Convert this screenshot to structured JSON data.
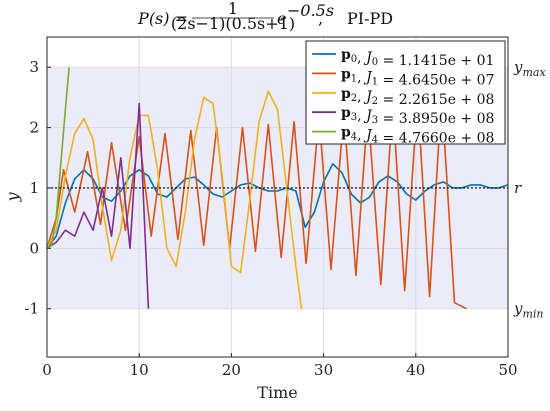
{
  "chart_data": {
    "type": "line",
    "title": "P(s) = 1/((2s-1)(0.5s+1)) e^{-0.5s},     PI-PD",
    "title_parts": {
      "lhs": "P(s) =",
      "frac_num": "1",
      "frac_den": "(2s−1)(0.5s+1)",
      "exp_base": "e",
      "exp_power": "−0.5s",
      "suffix": ",",
      "method": "PI-PD"
    },
    "xlabel": "Time",
    "ylabel": "y",
    "xlim": [
      0,
      50
    ],
    "ylim": [
      -1.8,
      3.5
    ],
    "xticks": [
      0,
      10,
      20,
      30,
      40,
      50
    ],
    "yticks": [
      -1,
      0,
      1,
      2,
      3
    ],
    "grid": true,
    "legend_position": "top-right",
    "reference": {
      "label": "r",
      "value": 1
    },
    "band": {
      "upper_label": "ymax",
      "upper": 3,
      "lower_label": "ymin",
      "lower": -1,
      "color": "#ebebfa"
    },
    "series": [
      {
        "name": "p0, J0 = 1.1415e+01",
        "legend": {
          "p": "p",
          "sub": "0",
          "j": "J",
          "jsub": "0",
          "value": "= 1.1415e + 01"
        },
        "color": "#0072bd",
        "x": [
          0,
          1,
          2,
          3,
          4,
          5,
          6,
          7,
          8,
          9,
          10,
          11,
          12,
          13,
          14,
          15,
          16,
          17,
          18,
          19,
          20,
          21,
          22,
          23,
          24,
          25,
          26,
          27,
          28,
          29,
          30,
          31,
          32,
          33,
          34,
          35,
          36,
          37,
          38,
          39,
          40,
          41,
          42,
          43,
          44,
          45,
          46,
          47,
          48,
          49,
          50
        ],
        "y": [
          0,
          0.2,
          0.75,
          1.15,
          1.3,
          1.15,
          0.85,
          0.78,
          0.95,
          1.2,
          1.3,
          1.2,
          0.9,
          0.85,
          1.0,
          1.15,
          1.18,
          1.05,
          0.9,
          0.85,
          0.95,
          1.05,
          1.08,
          1.0,
          0.95,
          0.95,
          1.0,
          0.95,
          0.35,
          0.6,
          1.1,
          1.4,
          1.25,
          0.9,
          0.75,
          0.85,
          1.1,
          1.2,
          1.1,
          0.9,
          0.8,
          0.95,
          1.05,
          1.1,
          1.0,
          1.0,
          1.05,
          1.05,
          1.0,
          1.0,
          1.05
        ]
      },
      {
        "name": "p1, J1 = 4.6450e+07",
        "legend": {
          "p": "p",
          "sub": "1",
          "j": "J",
          "jsub": "1",
          "value": "= 4.6450e + 07"
        },
        "color": "#d95319",
        "x": [
          0,
          1,
          1.8,
          3,
          4.4,
          5.8,
          7,
          8.5,
          10,
          11.3,
          12.8,
          14.2,
          15.6,
          17,
          18.4,
          19.8,
          21.2,
          22.6,
          24,
          25.4,
          26.8,
          28.1,
          29.5,
          30.8,
          32.2,
          33.5,
          34.8,
          36.2,
          37.5,
          38.8,
          40.2,
          41.5,
          42.8,
          44.2,
          45.5
        ],
        "y": [
          0,
          0.5,
          1.3,
          0.6,
          1.6,
          0.4,
          1.75,
          0.3,
          1.85,
          0.2,
          1.9,
          0.15,
          1.95,
          0.05,
          2.0,
          0.0,
          2.0,
          -0.05,
          2.05,
          -0.15,
          2.1,
          -0.25,
          2.2,
          -0.35,
          2.25,
          -0.45,
          2.3,
          -0.6,
          2.4,
          -0.7,
          2.5,
          -0.8,
          2.55,
          -0.9,
          -1.0
        ]
      },
      {
        "name": "p2, J2 = 2.2615e+08",
        "legend": {
          "p": "p",
          "sub": "2",
          "j": "J",
          "jsub": "2",
          "value": "= 2.2615e + 08"
        },
        "color": "#edb120",
        "x": [
          0,
          1,
          2,
          3,
          4,
          5,
          6,
          7,
          8,
          9,
          10,
          11,
          12,
          13,
          14,
          15,
          16,
          17,
          18,
          19,
          20,
          21,
          22,
          23,
          24,
          25,
          26,
          27,
          27.6
        ],
        "y": [
          0,
          0.3,
          1.2,
          1.9,
          2.15,
          1.8,
          0.7,
          -0.2,
          0.3,
          1.5,
          2.2,
          2.2,
          1.3,
          0.0,
          -0.3,
          0.6,
          1.8,
          2.5,
          2.4,
          1.2,
          -0.3,
          -0.4,
          0.8,
          2.1,
          2.6,
          2.3,
          1.0,
          -0.3,
          -1.0
        ]
      },
      {
        "name": "p3, J3 = 3.8950e+08",
        "legend": {
          "p": "p",
          "sub": "3",
          "j": "J",
          "jsub": "3",
          "value": "= 3.8950e + 08"
        },
        "color": "#7e2f8e",
        "x": [
          0,
          1,
          2,
          3,
          4,
          5,
          6,
          7,
          8,
          9,
          10,
          11
        ],
        "y": [
          0,
          0.1,
          0.3,
          0.2,
          0.6,
          0.3,
          1.0,
          0.2,
          1.5,
          0.0,
          2.4,
          -1.0
        ]
      },
      {
        "name": "p4, J4 = 4.7660e+08",
        "legend": {
          "p": "p",
          "sub": "4",
          "j": "J",
          "jsub": "4",
          "value": "= 4.7660e + 08"
        },
        "color": "#77ac30",
        "x": [
          0,
          0.5,
          1,
          1.5,
          2,
          2.4
        ],
        "y": [
          0,
          0.05,
          0.5,
          1.4,
          2.3,
          3.0
        ]
      }
    ]
  }
}
